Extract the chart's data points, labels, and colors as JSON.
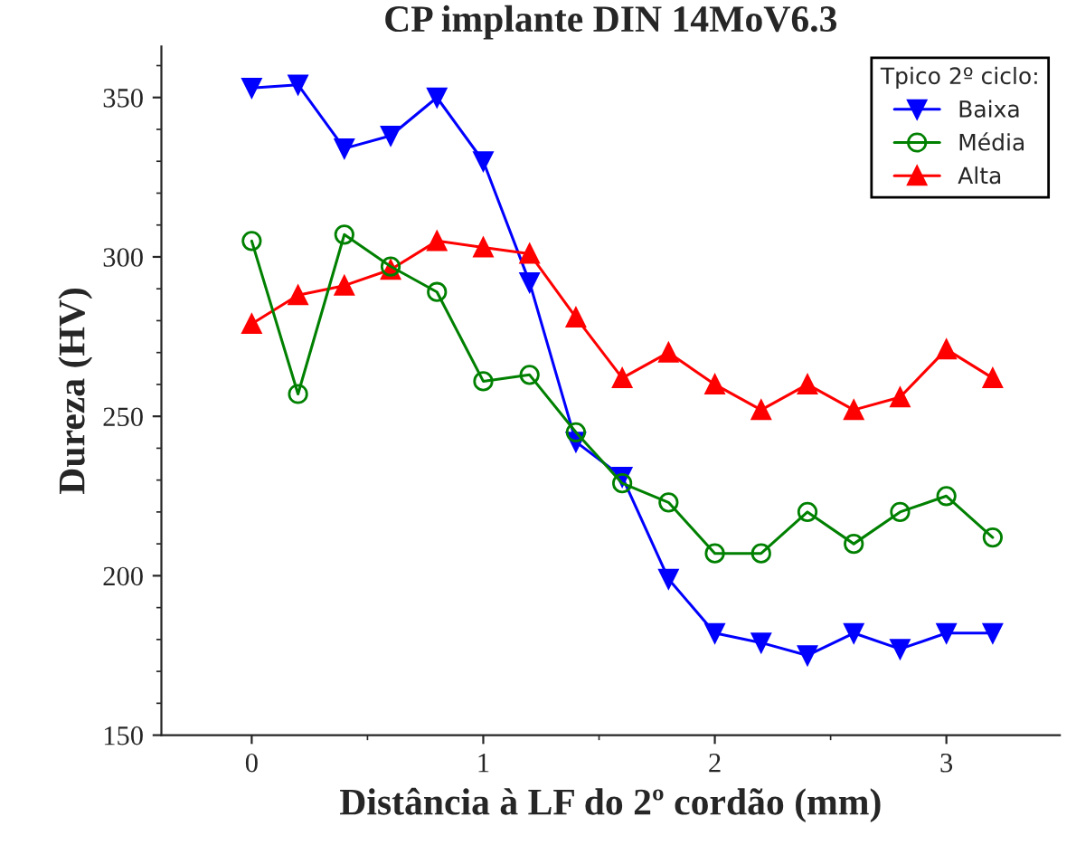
{
  "chart_data": {
    "type": "line",
    "title": "CP implante DIN 14MoV6.3",
    "xlabel": "Distância à LF do 2º cordão (mm)",
    "ylabel": "Dureza (HV)",
    "legend_title": "Tpico 2º ciclo:",
    "x": [
      0,
      0.2,
      0.4,
      0.6,
      0.8,
      1.0,
      1.2,
      1.4,
      1.6,
      1.8,
      2.0,
      2.2,
      2.4,
      2.6,
      2.8,
      3.0,
      3.2
    ],
    "series": [
      {
        "name": "Baixa",
        "color": "#0000ff",
        "marker": "triangle_down",
        "values": [
          353,
          354,
          334,
          338,
          350,
          330,
          292,
          242,
          231,
          199,
          182,
          179,
          175,
          182,
          177,
          182,
          182
        ]
      },
      {
        "name": "Média",
        "color": "#008000",
        "marker": "circle_open",
        "values": [
          305,
          257,
          307,
          297,
          289,
          261,
          263,
          245,
          229,
          223,
          207,
          207,
          220,
          210,
          220,
          225,
          212
        ]
      },
      {
        "name": "Alta",
        "color": "#ff0000",
        "marker": "triangle",
        "values": [
          279,
          288,
          291,
          296,
          305,
          303,
          301,
          281,
          262,
          270,
          260,
          252,
          260,
          252,
          256,
          271,
          262
        ]
      }
    ],
    "xlim": [
      -0.39,
      3.49
    ],
    "ylim": [
      150,
      366
    ],
    "xticks": [
      0,
      1,
      2,
      3
    ],
    "yticks": [
      150,
      200,
      250,
      300,
      350
    ],
    "grid": false,
    "legend": "top right",
    "line_style": "solid"
  }
}
